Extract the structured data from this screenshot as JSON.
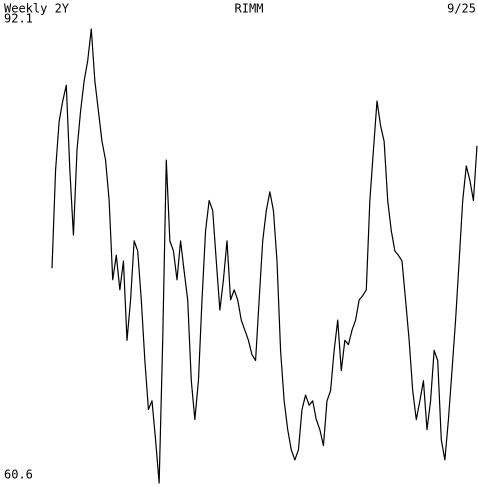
{
  "chart_data": {
    "type": "line",
    "title": "RIMM",
    "subtitle": "Weekly 2Y",
    "annotation": "9/25",
    "color": "#000000",
    "ylim": [
      60.6,
      92.1
    ],
    "yticks": [
      60.6,
      92.1
    ],
    "values": [
      75.5,
      82.3,
      85.7,
      87.1,
      88.2,
      82.3,
      77.8,
      83.7,
      86.4,
      88.5,
      89.9,
      92.1,
      88.5,
      86.4,
      84.3,
      83.0,
      80.2,
      74.7,
      76.4,
      74.0,
      76.0,
      70.5,
      73.3,
      77.4,
      76.7,
      73.3,
      69.1,
      65.7,
      66.3,
      63.6,
      60.6,
      70.5,
      83.0,
      77.4,
      76.7,
      74.7,
      77.4,
      75.3,
      73.3,
      67.7,
      65.0,
      67.7,
      73.3,
      78.1,
      80.2,
      79.5,
      76.0,
      72.6,
      74.7,
      77.4,
      73.3,
      74.0,
      73.3,
      71.9,
      71.2,
      70.5,
      69.5,
      69.1,
      73.3,
      77.4,
      79.5,
      80.8,
      79.5,
      76.0,
      69.8,
      66.3,
      64.3,
      62.9,
      62.2,
      62.9,
      65.7,
      66.7,
      66.0,
      66.3,
      65.0,
      64.3,
      63.2,
      66.3,
      67.0,
      69.8,
      71.9,
      68.4,
      70.5,
      70.2,
      71.2,
      71.9,
      73.3,
      73.6,
      74.0,
      80.2,
      83.7,
      87.1,
      85.4,
      84.3,
      80.2,
      78.1,
      76.7,
      76.4,
      76.0,
      73.3,
      70.5,
      67.0,
      65.0,
      66.3,
      67.7,
      64.3,
      66.3,
      69.8,
      69.1,
      63.6,
      62.2,
      65.0,
      68.4,
      71.9,
      76.0,
      80.2,
      82.6,
      81.6,
      80.2,
      84.0
    ]
  }
}
